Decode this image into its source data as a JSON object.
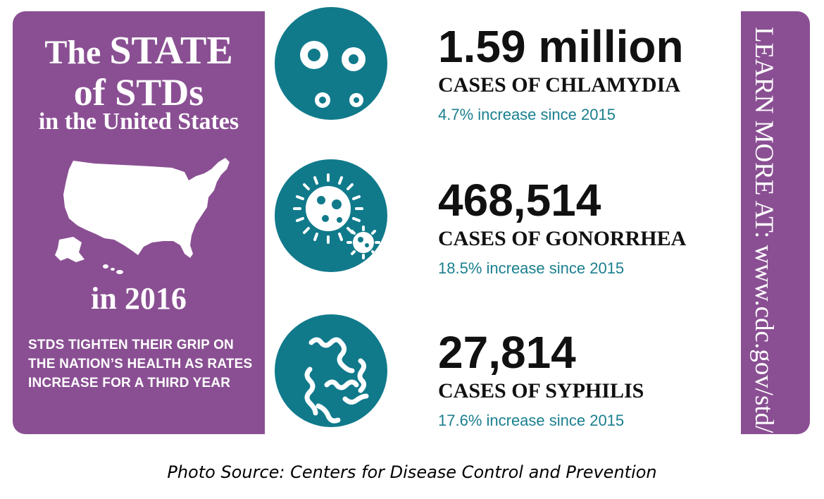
{
  "left": {
    "title_line1_prefix": "The ",
    "title_line1_emph": "STATE",
    "title_line2": "of STDs",
    "title_line3": "in the United States",
    "year": "in 2016",
    "tagline": "STDS TIGHTEN THEIR GRIP ON THE NATION’S HEALTH AS RATES INCREASE FOR A THIRD YEAR"
  },
  "stats": [
    {
      "number": "1.59 million",
      "label": "CASES OF CHLAMYDIA",
      "increase": "4.7% increase since 2015",
      "icon": "chlamydia-icon"
    },
    {
      "number": "468,514",
      "label": "CASES OF GONORRHEA",
      "increase": "18.5% increase since 2015",
      "icon": "gonorrhea-icon"
    },
    {
      "number": "27,814",
      "label": "CASES OF SYPHILIS",
      "increase": "17.6% increase since 2015",
      "icon": "syphilis-icon"
    }
  ],
  "sidebar": {
    "learn_more": "LEARN MORE AT: www.cdc.gov/std/"
  },
  "caption": "Photo Source: Centers for Disease Control and Prevention",
  "colors": {
    "purple": "#8a4f93",
    "teal": "#107a8b",
    "teal_text": "#1a7f8e"
  }
}
